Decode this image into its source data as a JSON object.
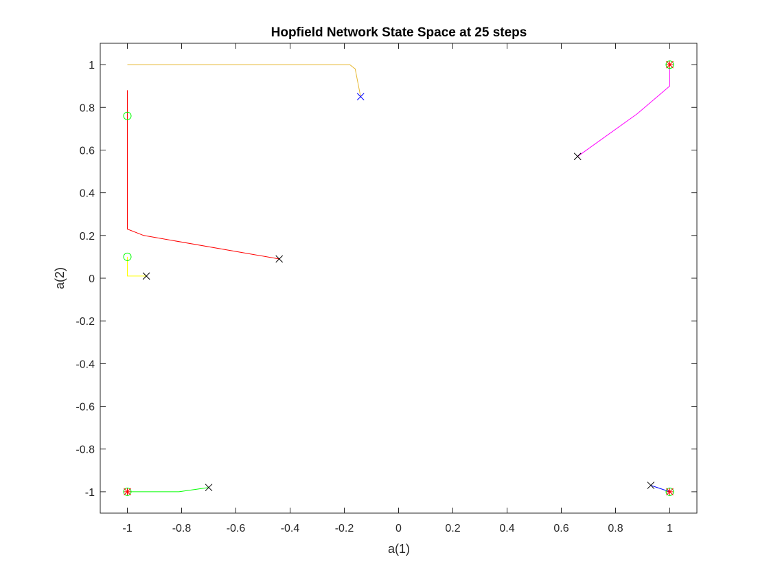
{
  "chart_data": {
    "type": "line",
    "title": "Hopfield Network State Space at 25 steps",
    "xlabel": "a(1)",
    "ylabel": "a(2)",
    "xlim": [
      -1.1,
      1.1
    ],
    "ylim": [
      -1.1,
      1.1
    ],
    "grid": false,
    "xticks": [
      "-1",
      "-0.8",
      "-0.6",
      "-0.4",
      "-0.2",
      "0",
      "0.2",
      "0.4",
      "0.6",
      "0.8",
      "1"
    ],
    "xtick_values": [
      -1,
      -0.8,
      -0.6,
      -0.4,
      -0.2,
      0,
      0.2,
      0.4,
      0.6,
      0.8,
      1
    ],
    "yticks": [
      "-1",
      "-0.8",
      "-0.6",
      "-0.4",
      "-0.2",
      "0",
      "0.2",
      "0.4",
      "0.6",
      "0.8",
      "1"
    ],
    "ytick_values": [
      -1,
      -0.8,
      -0.6,
      -0.4,
      -0.2,
      0,
      0.2,
      0.4,
      0.6,
      0.8,
      1
    ],
    "series": [
      {
        "color": "#e6b830",
        "start_color": "#0000ff",
        "points": [
          [
            -0.14,
            0.85
          ],
          [
            -0.16,
            0.98
          ],
          [
            -0.18,
            1.0
          ],
          [
            -1.0,
            1.0
          ]
        ]
      },
      {
        "color": "#ff0000",
        "start_color": "#000000",
        "points": [
          [
            -0.44,
            0.09
          ],
          [
            -0.94,
            0.2
          ],
          [
            -1.0,
            0.23
          ],
          [
            -1.0,
            0.88
          ]
        ]
      },
      {
        "color": "#ffff00",
        "start_color": "#000000",
        "points": [
          [
            -0.93,
            0.01
          ],
          [
            -1.0,
            0.01
          ],
          [
            -1.0,
            0.1
          ]
        ]
      },
      {
        "color": "#00ff00",
        "start_color": "#000000",
        "points": [
          [
            -0.7,
            -0.98
          ],
          [
            -0.81,
            -1.0
          ],
          [
            -1.0,
            -1.0
          ]
        ]
      },
      {
        "color": "#ff00ff",
        "start_color": "#000000",
        "points": [
          [
            0.66,
            0.57
          ],
          [
            0.88,
            0.77
          ],
          [
            1.0,
            0.9
          ],
          [
            1.0,
            1.0
          ]
        ]
      },
      {
        "color": "#0000ff",
        "start_color": "#000000",
        "points": [
          [
            0.93,
            -0.97
          ],
          [
            1.0,
            -1.0
          ]
        ]
      }
    ],
    "end_markers": [
      {
        "x": -1.0,
        "y": 0.76,
        "marker": "circle",
        "color": "#00ff00"
      },
      {
        "x": -1.0,
        "y": 0.1,
        "marker": "circle",
        "color": "#00ff00"
      },
      {
        "x": -1.0,
        "y": -1.0,
        "marker": "circle",
        "color": "#00ff00"
      },
      {
        "x": 1.0,
        "y": 1.0,
        "marker": "circle",
        "color": "#00ff00"
      },
      {
        "x": 1.0,
        "y": -1.0,
        "marker": "circle",
        "color": "#00ff00"
      }
    ],
    "equilibria": [
      {
        "x": -1.0,
        "y": -1.0,
        "marker": "star",
        "color": "#ff0000"
      },
      {
        "x": 1.0,
        "y": 1.0,
        "marker": "star",
        "color": "#ff0000"
      },
      {
        "x": 1.0,
        "y": -1.0,
        "marker": "star",
        "color": "#ff0000"
      }
    ]
  }
}
